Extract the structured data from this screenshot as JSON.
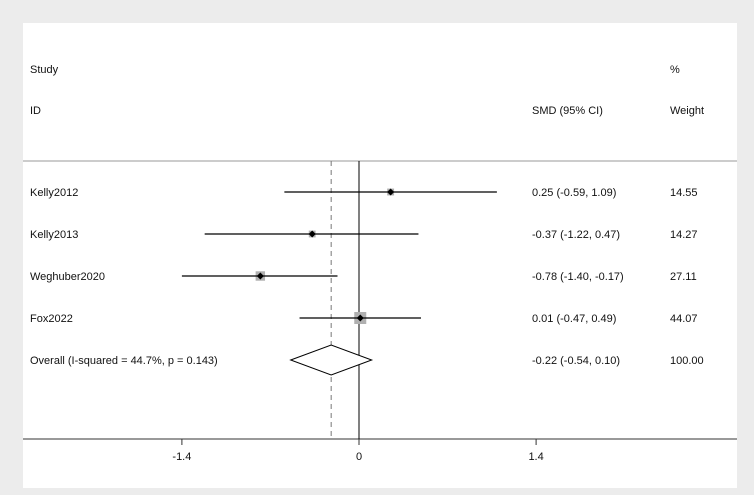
{
  "chart_data": {
    "type": "forest",
    "header": {
      "study_line1": "Study",
      "study_line2": "ID",
      "ci_label": "SMD (95% CI)",
      "weight_line1": "%",
      "weight_line2": "Weight"
    },
    "studies": [
      {
        "id": "Kelly2012",
        "smd": 0.25,
        "lower": -0.59,
        "upper": 1.09,
        "ci_text": "0.25 (-0.59, 1.09)",
        "weight": 14.55,
        "weight_text": "14.55"
      },
      {
        "id": "Kelly2013",
        "smd": -0.37,
        "lower": -1.22,
        "upper": 0.47,
        "ci_text": "-0.37 (-1.22, 0.47)",
        "weight": 14.27,
        "weight_text": "14.27"
      },
      {
        "id": "Weghuber2020",
        "smd": -0.78,
        "lower": -1.4,
        "upper": -0.17,
        "ci_text": "-0.78 (-1.40, -0.17)",
        "weight": 27.11,
        "weight_text": "27.11"
      },
      {
        "id": "Fox2022",
        "smd": 0.01,
        "lower": -0.47,
        "upper": 0.49,
        "ci_text": "0.01 (-0.47, 0.49)",
        "weight": 44.07,
        "weight_text": "44.07"
      }
    ],
    "overall": {
      "label": "Overall  (I-squared = 44.7%, p = 0.143)",
      "smd": -0.22,
      "lower": -0.54,
      "upper": 0.1,
      "ci_text": "-0.22 (-0.54, 0.10)",
      "weight_text": "100.00"
    },
    "x_ticks": [
      {
        "value": -1.4,
        "label": "-1.4"
      },
      {
        "value": 0,
        "label": "0"
      },
      {
        "value": 1.4,
        "label": "1.4"
      }
    ],
    "null_line": 0,
    "colors": {
      "ci_line": "#000000",
      "weight_box": "#b0b0b0",
      "summary_line": "#777777",
      "frame": "#999999"
    }
  }
}
